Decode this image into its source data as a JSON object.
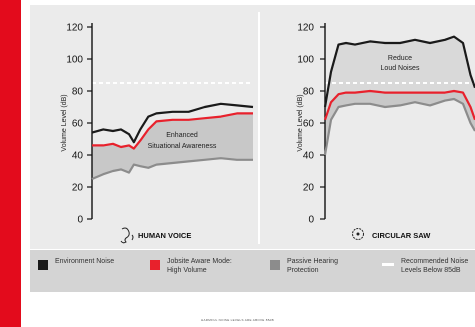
{
  "colors": {
    "accent": "#e30b1c",
    "environment": "#1a1a1a",
    "jobsite": "#e8212c",
    "passive": "#8c8c8c",
    "recommended": "#ffffff",
    "band": "#c8c8c8"
  },
  "legend": {
    "items": [
      {
        "label": "Environment Noise",
        "swatch": "environment"
      },
      {
        "label": "Jobsite Aware Mode:\nHigh Volume",
        "swatch": "jobsite"
      },
      {
        "label": "Passive Hearing\nProtection",
        "swatch": "passive"
      },
      {
        "label": "Recommended Noise\nLevels Below 85dB",
        "swatch": "recommended"
      }
    ]
  },
  "footer_text": "HARMFUL NOISE LEVELS ARE ABOVE 85dB",
  "chart_data": [
    {
      "type": "line",
      "ylabel": "Volume Level (dB)",
      "ylim": [
        0,
        120
      ],
      "yticks": [
        0,
        20,
        40,
        60,
        80,
        100,
        120
      ],
      "recommended_level": 85,
      "caption": "HUMAN VOICE",
      "caption_icon": "ear-icon",
      "annotation": "Enhanced\nSituational Awareness",
      "x": [
        0,
        0.07,
        0.13,
        0.18,
        0.23,
        0.26,
        0.3,
        0.35,
        0.4,
        0.5,
        0.6,
        0.7,
        0.8,
        0.9,
        1.0
      ],
      "series": [
        {
          "name": "Environment Noise",
          "color": "environment",
          "values": [
            54,
            56,
            55,
            56,
            53,
            48,
            56,
            64,
            66,
            67,
            67,
            70,
            72,
            71,
            70
          ]
        },
        {
          "name": "Jobsite Aware Mode: High Volume",
          "color": "jobsite",
          "values": [
            46,
            46,
            47,
            45,
            46,
            44,
            49,
            56,
            61,
            62,
            62,
            63,
            64,
            66,
            66
          ]
        },
        {
          "name": "Passive Hearing Protection",
          "color": "passive",
          "values": [
            25,
            28,
            30,
            31,
            29,
            34,
            33,
            32,
            34,
            35,
            36,
            37,
            38,
            37,
            37
          ]
        }
      ]
    },
    {
      "type": "line",
      "ylabel": "Volume Level (dB)",
      "ylim": [
        0,
        120
      ],
      "yticks": [
        0,
        20,
        40,
        60,
        80,
        100,
        120
      ],
      "recommended_level": 85,
      "caption": "CIRCULAR SAW",
      "caption_icon": "saw-icon",
      "annotation": "Reduce\nLoud Noises",
      "x": [
        0,
        0.04,
        0.09,
        0.14,
        0.2,
        0.3,
        0.4,
        0.5,
        0.6,
        0.7,
        0.8,
        0.86,
        0.92,
        0.97,
        1.0
      ],
      "series": [
        {
          "name": "Environment Noise",
          "color": "environment",
          "values": [
            70,
            92,
            109,
            110,
            109,
            111,
            110,
            110,
            112,
            110,
            112,
            114,
            110,
            90,
            82
          ]
        },
        {
          "name": "Jobsite Aware Mode: High Volume",
          "color": "jobsite",
          "values": [
            62,
            73,
            78,
            79,
            79,
            80,
            79,
            79,
            79,
            79,
            79,
            80,
            79,
            70,
            62
          ]
        },
        {
          "name": "Passive Hearing Protection",
          "color": "passive",
          "values": [
            40,
            62,
            70,
            71,
            72,
            72,
            70,
            71,
            73,
            71,
            74,
            75,
            72,
            60,
            55
          ]
        }
      ]
    }
  ]
}
